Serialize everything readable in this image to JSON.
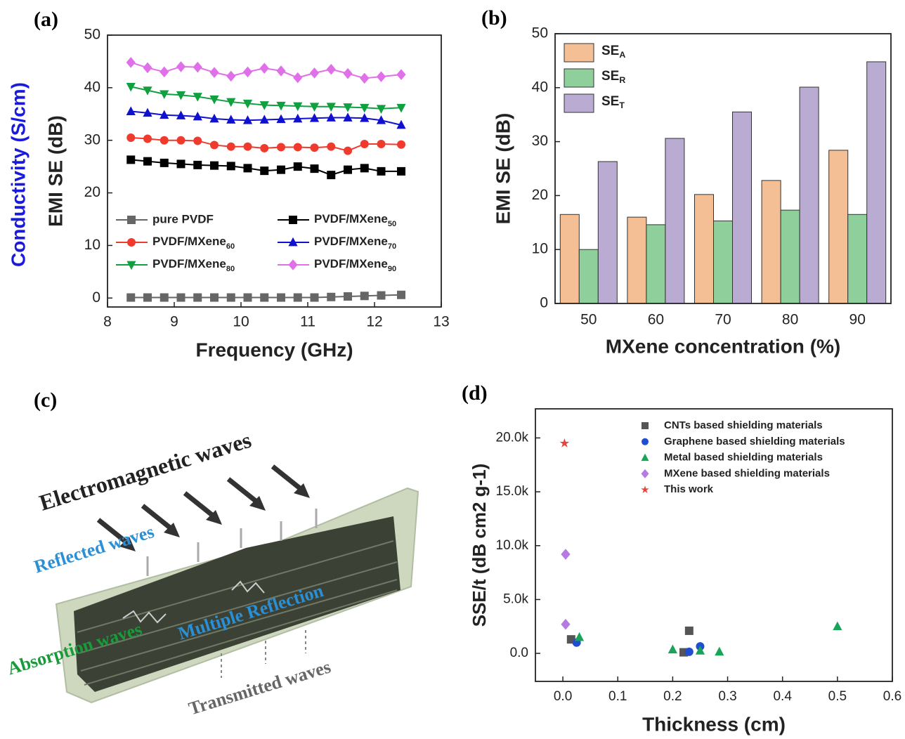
{
  "chart_data": [
    {
      "type": "line",
      "panel_label": "(a)",
      "x_label": "Frequency (GHz)",
      "y_label": "EMI SE (dB)",
      "y_label_left": "Conductivity (S/cm)",
      "y_label_left_color": "#1a1adb",
      "x": [
        8.35,
        8.6,
        8.85,
        9.1,
        9.35,
        9.6,
        9.85,
        10.1,
        10.35,
        10.6,
        10.85,
        11.1,
        11.35,
        11.6,
        11.85,
        12.1,
        12.4
      ],
      "xlim": [
        8,
        13
      ],
      "xticks": [
        8,
        9,
        10,
        11,
        12,
        13
      ],
      "ylim": [
        -1.7,
        50
      ],
      "yticks": [
        0,
        10,
        20,
        30,
        40,
        50
      ],
      "series": [
        {
          "name": "pure PVDF",
          "color": "#666666",
          "marker": "square",
          "values": [
            0.1,
            0.1,
            0.1,
            0.1,
            0.1,
            0.1,
            0.1,
            0.1,
            0.1,
            0.1,
            0.1,
            0.1,
            0.2,
            0.3,
            0.4,
            0.5,
            0.6
          ]
        },
        {
          "name": "PVDF/MXene50",
          "color": "#000000",
          "marker": "square",
          "values": [
            26.3,
            26,
            25.7,
            25.5,
            25.3,
            25.2,
            25.1,
            24.7,
            24.2,
            24.4,
            25,
            24.6,
            23.4,
            24.4,
            24.7,
            24.1,
            24.1
          ]
        },
        {
          "name": "PVDF/MXene60",
          "color": "#f03a2e",
          "marker": "circle",
          "values": [
            30.5,
            30.3,
            30,
            30,
            29.9,
            29.1,
            28.8,
            28.8,
            28.5,
            28.7,
            28.7,
            28.6,
            28.8,
            28,
            29.3,
            29.3,
            29.2
          ]
        },
        {
          "name": "PVDF/MXene70",
          "color": "#1010d0",
          "marker": "triangle",
          "values": [
            35.5,
            35.2,
            34.8,
            34.7,
            34.5,
            34.1,
            33.9,
            33.8,
            33.9,
            34,
            34.1,
            34.2,
            34.3,
            34.3,
            34.2,
            33.8,
            32.9
          ]
        },
        {
          "name": "PVDF/MXene80",
          "color": "#10a040",
          "marker": "triangle-down",
          "values": [
            40.2,
            39.5,
            38.8,
            38.6,
            38.3,
            37.8,
            37.3,
            37,
            36.7,
            36.6,
            36.5,
            36.4,
            36.4,
            36.3,
            36.2,
            36,
            36.2
          ]
        },
        {
          "name": "PVDF/MXene90",
          "color": "#e070e8",
          "marker": "diamond",
          "values": [
            44.8,
            43.8,
            43,
            44,
            43.9,
            42.9,
            42.2,
            43,
            43.7,
            43.2,
            41.9,
            42.8,
            43.5,
            42.7,
            41.8,
            42.1,
            42.5
          ]
        }
      ]
    },
    {
      "type": "bar",
      "panel_label": "(b)",
      "x_label": "MXene concentration (%)",
      "y_label": "EMI SE (dB)",
      "categories": [
        "50",
        "60",
        "70",
        "80",
        "90"
      ],
      "ylim": [
        0,
        50
      ],
      "yticks": [
        0,
        10,
        20,
        30,
        40,
        50
      ],
      "series": [
        {
          "name": "SEA",
          "color": "#f5bf96",
          "values": [
            16.5,
            16,
            20.2,
            22.8,
            28.4
          ]
        },
        {
          "name": "SER",
          "color": "#8fcf9c",
          "values": [
            10,
            14.6,
            15.3,
            17.3,
            16.5
          ]
        },
        {
          "name": "SET",
          "color": "#b9abd1",
          "values": [
            26.3,
            30.6,
            35.5,
            40.1,
            44.8
          ]
        }
      ]
    },
    {
      "type": "scatter",
      "panel_label": "(d)",
      "x_label": "Thickness (cm)",
      "y_label": "SSE/t (dB cm2 g-1)",
      "xlim": [
        -0.05,
        0.6
      ],
      "xticks": [
        {
          "value": 0,
          "label": "0.0"
        },
        0.1,
        0.2,
        0.3,
        0.4,
        0.5,
        0.6
      ],
      "ylim": [
        -2600,
        22700
      ],
      "yticks": [
        {
          "value": 0,
          "label": "0.0"
        },
        {
          "value": 5000,
          "label": "5.0k"
        },
        {
          "value": 10000,
          "label": "10.0k"
        },
        {
          "value": 15000,
          "label": "15.0k"
        },
        {
          "value": 20000,
          "label": "20.0k"
        }
      ],
      "series": [
        {
          "name": "CNTs based shielding materials",
          "color": "#555555",
          "marker": "square",
          "x": [
            0.015,
            0.22,
            0.23
          ],
          "values": [
            1300,
            100,
            2100
          ]
        },
        {
          "name": "Graphene based shielding materials",
          "color": "#1f4fd0",
          "marker": "circle",
          "x": [
            0.025,
            0.23,
            0.25
          ],
          "values": [
            1000,
            150,
            650
          ]
        },
        {
          "name": "Metal based shielding materials",
          "color": "#1aa35a",
          "marker": "triangle",
          "x": [
            0.03,
            0.2,
            0.25,
            0.285,
            0.5
          ],
          "values": [
            1500,
            350,
            250,
            150,
            2500
          ]
        },
        {
          "name": "MXene based shielding materials",
          "color": "#b57be0",
          "marker": "diamond",
          "x": [
            0.005,
            0.005
          ],
          "values": [
            9200,
            2700
          ]
        },
        {
          "name": "This work",
          "color": "#e8443a",
          "marker": "star",
          "x": [
            0.003
          ],
          "values": [
            19500
          ]
        }
      ]
    }
  ],
  "illustration": {
    "panel_label": "(c)",
    "top": "Electromagnetic waves",
    "reflected": "Reflected waves",
    "absorption": "Absorption waves",
    "multiple": "Multiple Reflection",
    "transmitted": "Transmitted waves"
  }
}
